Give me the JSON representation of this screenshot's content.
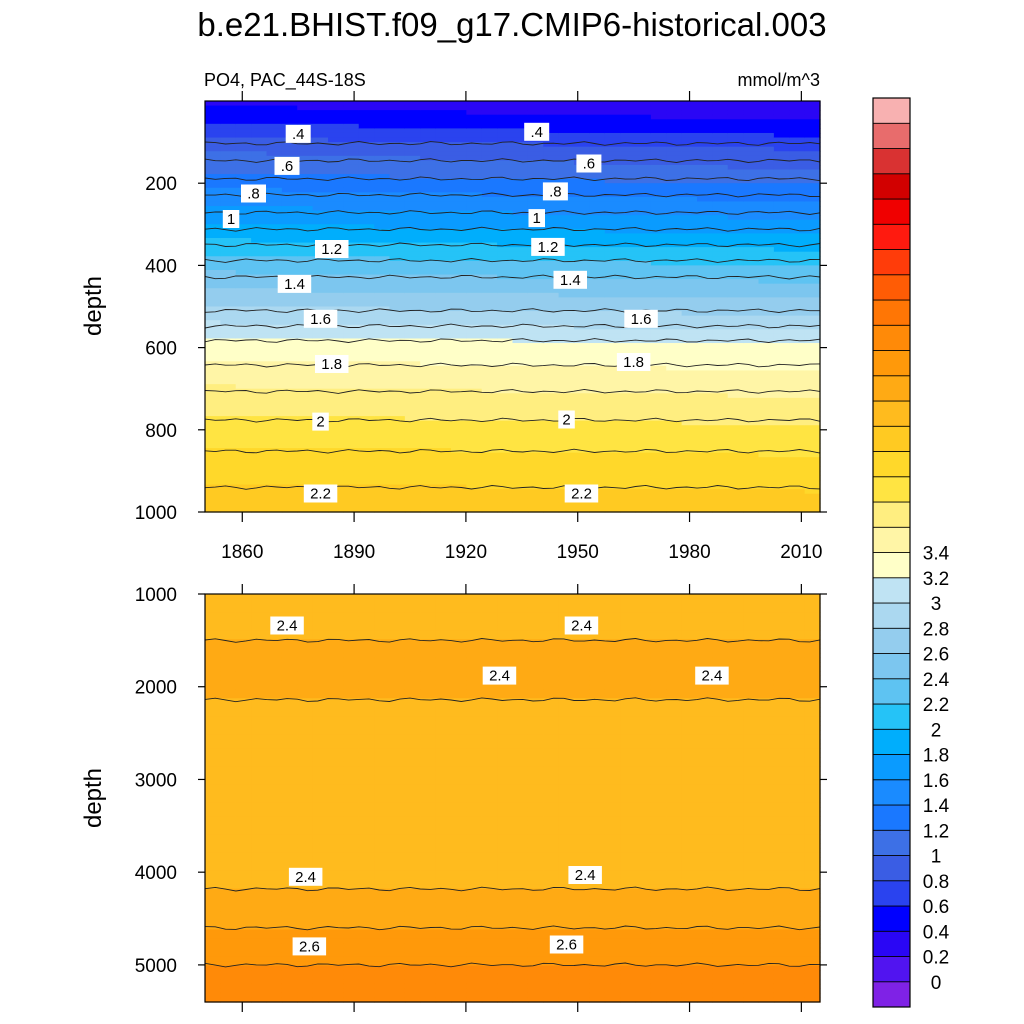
{
  "chart_data": {
    "type": "contour",
    "title": "b.e21.BHIST.f09_g17.CMIP6-historical.003",
    "variable_label": "PO4, PAC_44S-18S",
    "units_label": "mmol/m^3",
    "x_range": [
      1850,
      2015
    ],
    "x_ticks": [
      1860,
      1890,
      1920,
      1950,
      1980,
      2010
    ],
    "x_tick_labels": [
      "1860",
      "1890",
      "1920",
      "1950",
      "1980",
      "2010"
    ],
    "panels": [
      {
        "name": "upper",
        "ylabel": "depth",
        "ylim": [
          0,
          1000
        ],
        "y_ticks": [
          200,
          400,
          600,
          800,
          1000
        ],
        "y_tick_labels": [
          "200",
          "400",
          "600",
          "800",
          "1000"
        ],
        "profile_depth": [
          10,
          30,
          70,
          120,
          170,
          220,
          280,
          320,
          380,
          420,
          470,
          530,
          590,
          630,
          680,
          740,
          820,
          900,
          960,
          1000
        ],
        "profile_value": [
          0.25,
          0.3,
          0.4,
          0.55,
          0.65,
          0.78,
          0.92,
          1.02,
          1.18,
          1.28,
          1.4,
          1.55,
          1.72,
          1.78,
          1.86,
          1.95,
          2.06,
          2.16,
          2.22,
          2.26
        ],
        "drift_per_year": -0.0006,
        "contour_labels": [
          {
            "text": ".4",
            "x": 1875,
            "y": 80
          },
          {
            "text": ".4",
            "x": 1939,
            "y": 75
          },
          {
            "text": ".6",
            "x": 1872,
            "y": 158
          },
          {
            "text": ".6",
            "x": 1953,
            "y": 152
          },
          {
            "text": ".8",
            "x": 1863,
            "y": 225
          },
          {
            "text": ".8",
            "x": 1944,
            "y": 220
          },
          {
            "text": "1",
            "x": 1857,
            "y": 287
          },
          {
            "text": "1",
            "x": 1939,
            "y": 285
          },
          {
            "text": "1.2",
            "x": 1884,
            "y": 360
          },
          {
            "text": "1.2",
            "x": 1942,
            "y": 355
          },
          {
            "text": "1.4",
            "x": 1874,
            "y": 445
          },
          {
            "text": "1.4",
            "x": 1948,
            "y": 435
          },
          {
            "text": "1.6",
            "x": 1881,
            "y": 530
          },
          {
            "text": "1.6",
            "x": 1967,
            "y": 530
          },
          {
            "text": "1.8",
            "x": 1884,
            "y": 640
          },
          {
            "text": "1.8",
            "x": 1965,
            "y": 635
          },
          {
            "text": "2",
            "x": 1881,
            "y": 780
          },
          {
            "text": "2",
            "x": 1947,
            "y": 775
          },
          {
            "text": "2.2",
            "x": 1881,
            "y": 955
          },
          {
            "text": "2.2",
            "x": 1951,
            "y": 955
          }
        ]
      },
      {
        "name": "lower",
        "ylabel": "depth",
        "ylim": [
          1000,
          5400
        ],
        "y_ticks": [
          1000,
          2000,
          3000,
          4000,
          5000
        ],
        "y_tick_labels": [
          "1000",
          "2000",
          "3000",
          "4000",
          "5000"
        ],
        "profile_depth": [
          1000,
          1300,
          1900,
          2500,
          3500,
          4050,
          4400,
          4800,
          5200,
          5400
        ],
        "profile_value": [
          2.34,
          2.39,
          2.42,
          2.37,
          2.33,
          2.37,
          2.45,
          2.55,
          2.65,
          2.7
        ],
        "drift_per_year": 0,
        "contour_labels": [
          {
            "text": "2.4",
            "x": 1872,
            "y": 1340
          },
          {
            "text": "2.4",
            "x": 1951,
            "y": 1340
          },
          {
            "text": "2.4",
            "x": 1929,
            "y": 1880
          },
          {
            "text": "2.4",
            "x": 1986,
            "y": 1880
          },
          {
            "text": "2.4",
            "x": 1877,
            "y": 4050
          },
          {
            "text": "2.4",
            "x": 1952,
            "y": 4030
          },
          {
            "text": "2.6",
            "x": 1878,
            "y": 4800
          },
          {
            "text": "2.6",
            "x": 1947,
            "y": 4780
          }
        ]
      }
    ],
    "colorbar": {
      "levels": [
        -0.1,
        0.1,
        0.2,
        0.3,
        0.4,
        0.5,
        0.6,
        0.7,
        0.8,
        0.9,
        1.0,
        1.1,
        1.2,
        1.3,
        1.4,
        1.5,
        1.6,
        1.7,
        1.8,
        1.9,
        2.0,
        2.1,
        2.2,
        2.3,
        2.4,
        2.5,
        2.6,
        2.7,
        2.8,
        2.9,
        3.0,
        3.1,
        3.2,
        3.3,
        3.4,
        3.5,
        3.6
      ],
      "colors": [
        "#7f22e6",
        "#5114f0",
        "#2a06f5",
        "#0000ff",
        "#2a43ef",
        "#3a5de4",
        "#3d70e6",
        "#1a78ff",
        "#1a8bff",
        "#0a9bff",
        "#00aefc",
        "#25c3f7",
        "#5ec3f2",
        "#7cc6ef",
        "#94cdee",
        "#abd8f0",
        "#bfe3f3",
        "#ffffc8",
        "#fff5a6",
        "#ffee80",
        "#ffe442",
        "#ffd82a",
        "#ffca22",
        "#ffbb1e",
        "#ffaa14",
        "#ff990a",
        "#ff8a08",
        "#ff7605",
        "#ff5c05",
        "#ff3c0a",
        "#ff1a0f",
        "#f00000",
        "#d20000",
        "#d93232",
        "#e86c6c",
        "#f8b1b1"
      ],
      "tick_labels": [
        "0",
        "0.2",
        "0.4",
        "0.6",
        "0.8",
        "1",
        "1.2",
        "1.4",
        "1.6",
        "1.8",
        "2",
        "2.2",
        "2.4",
        "2.6",
        "2.8",
        "3",
        "3.2",
        "3.4"
      ],
      "tick_values": [
        0,
        0.2,
        0.4,
        0.6,
        0.8,
        1.0,
        1.2,
        1.4,
        1.6,
        1.8,
        2.0,
        2.2,
        2.4,
        2.6,
        2.8,
        3.0,
        3.2,
        3.4
      ]
    }
  }
}
